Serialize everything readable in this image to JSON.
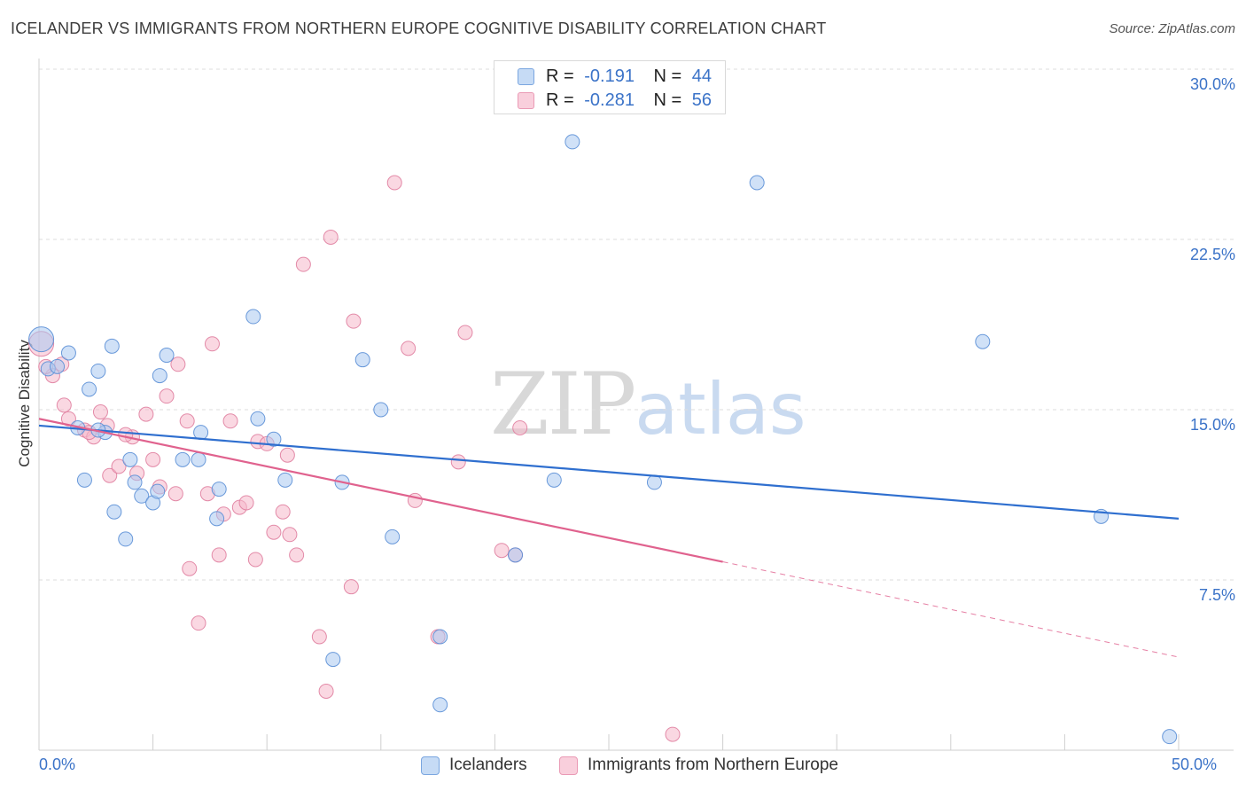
{
  "header": {
    "title": "ICELANDER VS IMMIGRANTS FROM NORTHERN EUROPE COGNITIVE DISABILITY CORRELATION CHART",
    "source": "Source: ZipAtlas.com"
  },
  "watermark": {
    "zip": "ZIP",
    "atlas": "atlas"
  },
  "legend_top": {
    "rows": [
      {
        "r_label": "R =",
        "r_value": "-0.191",
        "n_label": "N =",
        "n_value": "44",
        "color": "#a9c8f0"
      },
      {
        "r_label": "R =",
        "r_value": "-0.281",
        "n_label": "N =",
        "n_value": "56",
        "color": "#f5b8ca"
      }
    ]
  },
  "legend_bottom": {
    "icelanders": "Icelanders",
    "immigrants": "Immigrants from Northern Europe"
  },
  "colors": {
    "blue_fill": "#a9c8f0",
    "blue_stroke": "#5b8fd6",
    "blue_line": "#2f6fcf",
    "pink_fill": "#f5b8ca",
    "pink_stroke": "#e07fa0",
    "pink_line": "#e0628e",
    "axis_text": "#3b73c8",
    "grid": "#dddddd"
  },
  "chart_data": {
    "type": "scatter",
    "title": "ICELANDER VS IMMIGRANTS FROM NORTHERN EUROPE COGNITIVE DISABILITY CORRELATION CHART",
    "xlabel": "",
    "ylabel": "Cognitive Disability",
    "xlim": [
      0,
      50
    ],
    "ylim": [
      0,
      30
    ],
    "x_tick_labels": [
      "0.0%",
      "50.0%"
    ],
    "y_ticks": [
      7.5,
      15.0,
      22.5,
      30.0
    ],
    "y_tick_labels": [
      "7.5%",
      "15.0%",
      "22.5%",
      "30.0%"
    ],
    "grid": "horizontal dashed",
    "legend_position": "top-center",
    "series": [
      {
        "name": "Icelanders",
        "color": "#a9c8f0",
        "points": [
          [
            0.1,
            18.1
          ],
          [
            0.4,
            16.8
          ],
          [
            0.8,
            16.9
          ],
          [
            1.3,
            17.5
          ],
          [
            2.2,
            15.9
          ],
          [
            2.6,
            16.7
          ],
          [
            3.2,
            17.8
          ],
          [
            1.7,
            14.2
          ],
          [
            2.9,
            14.0
          ],
          [
            4.0,
            12.8
          ],
          [
            5.3,
            16.5
          ],
          [
            5.6,
            17.4
          ],
          [
            7.0,
            12.8
          ],
          [
            6.3,
            12.8
          ],
          [
            7.1,
            14.0
          ],
          [
            9.4,
            19.1
          ],
          [
            9.6,
            14.6
          ],
          [
            10.3,
            13.7
          ],
          [
            10.8,
            11.9
          ],
          [
            13.3,
            11.8
          ],
          [
            14.2,
            17.2
          ],
          [
            15.0,
            15.0
          ],
          [
            4.2,
            11.8
          ],
          [
            4.5,
            11.2
          ],
          [
            5.0,
            10.9
          ],
          [
            5.2,
            11.4
          ],
          [
            3.3,
            10.5
          ],
          [
            3.8,
            9.3
          ],
          [
            7.9,
            11.5
          ],
          [
            7.8,
            10.2
          ],
          [
            2.0,
            11.9
          ],
          [
            15.5,
            9.4
          ],
          [
            17.6,
            2.0
          ],
          [
            12.9,
            4.0
          ],
          [
            17.6,
            5.0
          ],
          [
            20.9,
            8.6
          ],
          [
            23.4,
            26.8
          ],
          [
            22.6,
            11.9
          ],
          [
            27.0,
            11.8
          ],
          [
            31.5,
            25.0
          ],
          [
            41.4,
            18.0
          ],
          [
            46.6,
            10.3
          ],
          [
            49.6,
            0.6
          ],
          [
            2.6,
            14.1
          ]
        ]
      },
      {
        "name": "Immigrants from Northern Europe",
        "color": "#f5b8ca",
        "points": [
          [
            0.1,
            17.9
          ],
          [
            0.6,
            16.5
          ],
          [
            1.1,
            15.2
          ],
          [
            1.3,
            14.6
          ],
          [
            2.0,
            14.1
          ],
          [
            2.4,
            13.8
          ],
          [
            2.7,
            14.9
          ],
          [
            3.0,
            14.3
          ],
          [
            3.1,
            12.1
          ],
          [
            3.5,
            12.5
          ],
          [
            4.1,
            13.8
          ],
          [
            4.3,
            12.2
          ],
          [
            4.7,
            14.8
          ],
          [
            5.0,
            12.8
          ],
          [
            5.3,
            11.6
          ],
          [
            5.6,
            15.6
          ],
          [
            6.0,
            11.3
          ],
          [
            6.1,
            17.0
          ],
          [
            6.5,
            14.5
          ],
          [
            6.6,
            8.0
          ],
          [
            7.0,
            5.6
          ],
          [
            7.4,
            11.3
          ],
          [
            7.6,
            17.9
          ],
          [
            7.9,
            8.6
          ],
          [
            8.1,
            10.4
          ],
          [
            8.4,
            14.5
          ],
          [
            8.8,
            10.7
          ],
          [
            9.1,
            10.9
          ],
          [
            9.5,
            8.4
          ],
          [
            9.6,
            13.6
          ],
          [
            10.0,
            13.5
          ],
          [
            10.3,
            9.6
          ],
          [
            10.7,
            10.5
          ],
          [
            10.9,
            13.0
          ],
          [
            11.0,
            9.5
          ],
          [
            11.3,
            8.6
          ],
          [
            11.6,
            21.4
          ],
          [
            12.3,
            5.0
          ],
          [
            12.6,
            2.6
          ],
          [
            12.8,
            22.6
          ],
          [
            13.8,
            18.9
          ],
          [
            13.7,
            7.2
          ],
          [
            15.6,
            25.0
          ],
          [
            16.2,
            17.7
          ],
          [
            16.5,
            11.0
          ],
          [
            17.5,
            5.0
          ],
          [
            18.4,
            12.7
          ],
          [
            18.7,
            18.4
          ],
          [
            20.3,
            8.8
          ],
          [
            20.9,
            8.6
          ],
          [
            21.1,
            14.2
          ],
          [
            27.8,
            0.7
          ],
          [
            1.0,
            17.0
          ],
          [
            0.3,
            16.9
          ],
          [
            2.2,
            14.0
          ],
          [
            3.8,
            13.9
          ]
        ]
      }
    ],
    "trendlines": [
      {
        "series": "Icelanders",
        "x": [
          0,
          50
        ],
        "y": [
          14.3,
          10.2
        ],
        "style": "solid"
      },
      {
        "series": "Immigrants from Northern Europe",
        "x": [
          0,
          30
        ],
        "y": [
          14.6,
          8.3
        ],
        "style": "solid"
      },
      {
        "series": "Immigrants from Northern Europe",
        "x": [
          30,
          50
        ],
        "y": [
          8.3,
          4.1
        ],
        "style": "dashed"
      }
    ]
  }
}
